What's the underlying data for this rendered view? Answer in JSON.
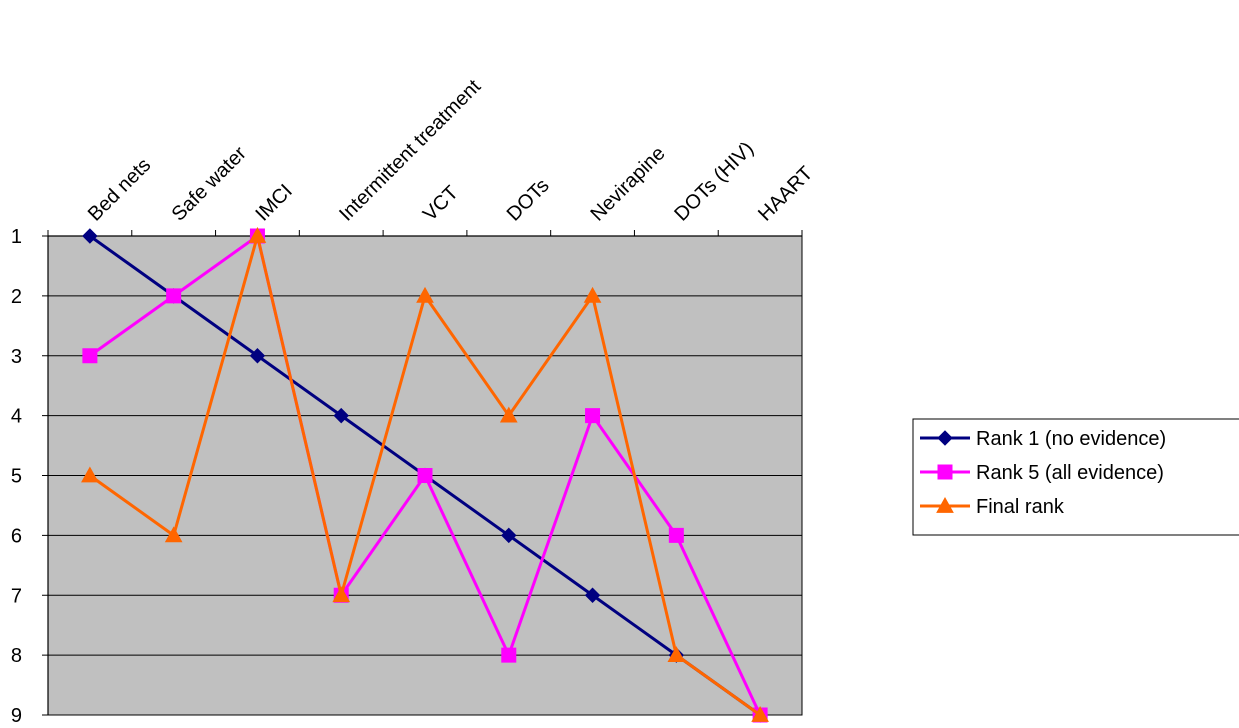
{
  "chart_data": {
    "type": "line",
    "title": "",
    "xlabel": "",
    "ylabel": "",
    "categories": [
      "Bed nets",
      "Safe water",
      "IMCI",
      "Intermittent treatment",
      "VCT",
      "DOTs",
      "Nevirapine",
      "DOTs (HIV)",
      "HAART"
    ],
    "y_ticks": [
      "1",
      "2",
      "3",
      "4",
      "5",
      "6",
      "7",
      "8",
      "9"
    ],
    "ylim": [
      1,
      9
    ],
    "y_inverted": true,
    "grid": "horizontal",
    "plot_background": "#c0c0c0",
    "legend_position": "right",
    "series": [
      {
        "name": "Rank 1 (no evidence)",
        "values": [
          1,
          2,
          3,
          4,
          5,
          6,
          7,
          8,
          9
        ],
        "color": "#000080",
        "marker": "diamond"
      },
      {
        "name": "Rank 5 (all evidence)",
        "values": [
          3,
          2,
          1,
          7,
          5,
          8,
          4,
          6,
          9
        ],
        "color": "#ff00ff",
        "marker": "square"
      },
      {
        "name": "Final rank",
        "values": [
          5,
          6,
          1,
          7,
          2,
          4,
          2,
          8,
          9
        ],
        "color": "#ff6600",
        "marker": "triangle"
      }
    ]
  }
}
